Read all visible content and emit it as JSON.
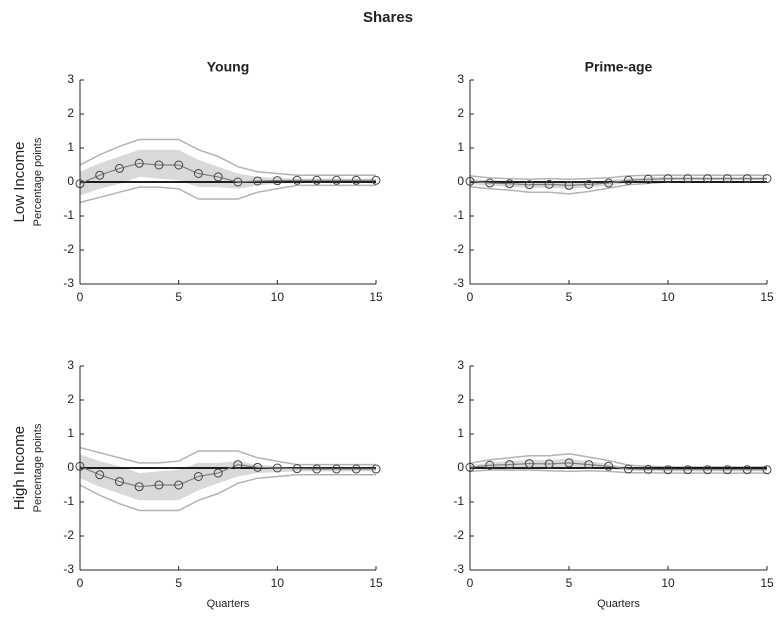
{
  "title": "Shares",
  "chart_data": [
    {
      "type": "line",
      "title": "Young",
      "row_label": "Low Income",
      "ylabel": "Percentage points",
      "x": [
        0,
        1,
        2,
        3,
        4,
        5,
        6,
        7,
        8,
        9,
        10,
        11,
        12,
        13,
        14,
        15
      ],
      "values": [
        -0.05,
        0.2,
        0.4,
        0.55,
        0.5,
        0.5,
        0.25,
        0.15,
        0.0,
        0.03,
        0.04,
        0.05,
        0.05,
        0.05,
        0.05,
        0.05
      ],
      "band_upper": [
        0.3,
        0.55,
        0.75,
        0.95,
        0.95,
        0.95,
        0.65,
        0.45,
        0.25,
        0.15,
        0.12,
        0.1,
        0.1,
        0.1,
        0.1,
        0.1
      ],
      "band_lower": [
        -0.4,
        -0.2,
        -0.05,
        0.15,
        0.1,
        0.05,
        -0.15,
        -0.15,
        -0.2,
        -0.1,
        -0.05,
        -0.02,
        -0.02,
        -0.02,
        -0.02,
        -0.02
      ],
      "outer_upper": [
        0.5,
        0.8,
        1.05,
        1.25,
        1.25,
        1.25,
        0.95,
        0.75,
        0.45,
        0.3,
        0.25,
        0.2,
        0.2,
        0.2,
        0.2,
        0.2
      ],
      "outer_lower": [
        -0.6,
        -0.45,
        -0.3,
        -0.15,
        -0.15,
        -0.2,
        -0.5,
        -0.5,
        -0.5,
        -0.3,
        -0.2,
        -0.1,
        -0.1,
        -0.1,
        -0.1,
        -0.1
      ],
      "line_color": "#808080",
      "band_color": "#d9d9d9",
      "outer_color": "#b3b3b3",
      "xlim": [
        0,
        15
      ],
      "xticks": [
        0,
        5,
        10,
        15
      ],
      "ylim": [
        -3,
        3
      ],
      "yticks": [
        -3,
        -2,
        -1,
        0,
        1,
        2,
        3
      ]
    },
    {
      "type": "line",
      "title": "Prime-age",
      "x": [
        0,
        1,
        2,
        3,
        4,
        5,
        6,
        7,
        8,
        9,
        10,
        11,
        12,
        13,
        14,
        15
      ],
      "values": [
        0.02,
        -0.03,
        -0.05,
        -0.08,
        -0.07,
        -0.1,
        -0.07,
        -0.03,
        0.05,
        0.08,
        0.1,
        0.1,
        0.1,
        0.1,
        0.1,
        0.1
      ],
      "band_upper": [
        0.1,
        0.05,
        0.04,
        0.02,
        0.03,
        0.0,
        0.02,
        0.05,
        0.12,
        0.14,
        0.15,
        0.15,
        0.15,
        0.15,
        0.15,
        0.15
      ],
      "band_lower": [
        -0.06,
        -0.11,
        -0.14,
        -0.18,
        -0.17,
        -0.2,
        -0.16,
        -0.11,
        -0.02,
        0.02,
        0.05,
        0.05,
        0.05,
        0.05,
        0.05,
        0.05
      ],
      "outer_upper": [
        0.18,
        0.12,
        0.1,
        0.08,
        0.1,
        0.08,
        0.1,
        0.12,
        0.18,
        0.2,
        0.2,
        0.2,
        0.2,
        0.2,
        0.2,
        0.2
      ],
      "outer_lower": [
        -0.14,
        -0.2,
        -0.24,
        -0.3,
        -0.3,
        -0.35,
        -0.28,
        -0.18,
        -0.08,
        -0.04,
        0,
        0,
        0,
        0,
        0,
        0
      ],
      "line_color": "#808080",
      "band_color": "#d9d9d9",
      "outer_color": "#b3b3b3",
      "xlim": [
        0,
        15
      ],
      "xticks": [
        0,
        5,
        10,
        15
      ],
      "ylim": [
        -3,
        3
      ],
      "yticks": [
        -3,
        -2,
        -1,
        0,
        1,
        2,
        3
      ]
    },
    {
      "type": "line",
      "row_label": "High Income",
      "ylabel": "Percentage points",
      "xlabel": "Quarters",
      "x": [
        0,
        1,
        2,
        3,
        4,
        5,
        6,
        7,
        8,
        9,
        10,
        11,
        12,
        13,
        14,
        15
      ],
      "values": [
        0.05,
        -0.2,
        -0.4,
        -0.55,
        -0.5,
        -0.5,
        -0.25,
        -0.15,
        0.1,
        0.02,
        0.0,
        -0.02,
        -0.03,
        -0.03,
        -0.03,
        -0.03
      ],
      "band_upper": [
        0.4,
        0.2,
        0.05,
        -0.15,
        -0.1,
        -0.05,
        0.15,
        0.15,
        0.2,
        0.1,
        0.05,
        0.02,
        0.02,
        0.02,
        0.02,
        0.02
      ],
      "band_lower": [
        -0.3,
        -0.55,
        -0.75,
        -0.95,
        -0.95,
        -0.95,
        -0.65,
        -0.45,
        -0.25,
        -0.15,
        -0.12,
        -0.1,
        -0.1,
        -0.1,
        -0.1,
        -0.1
      ],
      "outer_upper": [
        0.6,
        0.45,
        0.3,
        0.15,
        0.15,
        0.2,
        0.5,
        0.5,
        0.5,
        0.3,
        0.2,
        0.1,
        0.1,
        0.1,
        0.1,
        0.1
      ],
      "outer_lower": [
        -0.5,
        -0.8,
        -1.05,
        -1.25,
        -1.25,
        -1.25,
        -0.95,
        -0.75,
        -0.45,
        -0.3,
        -0.25,
        -0.2,
        -0.2,
        -0.2,
        -0.2,
        -0.2
      ],
      "line_color": "#808080",
      "band_color": "#d9d9d9",
      "outer_color": "#b3b3b3",
      "xlim": [
        0,
        15
      ],
      "xticks": [
        0,
        5,
        10,
        15
      ],
      "ylim": [
        -3,
        3
      ],
      "yticks": [
        -3,
        -2,
        -1,
        0,
        1,
        2,
        3
      ]
    },
    {
      "type": "line",
      "xlabel": "Quarters",
      "x": [
        0,
        1,
        2,
        3,
        4,
        5,
        6,
        7,
        8,
        9,
        10,
        11,
        12,
        13,
        14,
        15
      ],
      "values": [
        0.02,
        0.08,
        0.1,
        0.13,
        0.12,
        0.15,
        0.1,
        0.05,
        -0.03,
        -0.04,
        -0.05,
        -0.05,
        -0.05,
        -0.05,
        -0.05,
        -0.05
      ],
      "band_upper": [
        0.08,
        0.16,
        0.2,
        0.24,
        0.24,
        0.28,
        0.2,
        0.12,
        0.03,
        0.0,
        -0.01,
        -0.01,
        -0.01,
        -0.01,
        -0.01,
        -0.01
      ],
      "band_lower": [
        -0.04,
        0.0,
        0.02,
        0.03,
        0.02,
        0.03,
        0.01,
        -0.02,
        -0.08,
        -0.09,
        -0.1,
        -0.1,
        -0.1,
        -0.1,
        -0.1,
        -0.1
      ],
      "outer_upper": [
        0.14,
        0.24,
        0.3,
        0.36,
        0.36,
        0.42,
        0.32,
        0.22,
        0.08,
        0.05,
        0.03,
        0.03,
        0.03,
        0.03,
        0.03,
        0.03
      ],
      "outer_lower": [
        -0.1,
        -0.06,
        -0.06,
        -0.06,
        -0.08,
        -0.1,
        -0.08,
        -0.1,
        -0.14,
        -0.14,
        -0.15,
        -0.15,
        -0.15,
        -0.15,
        -0.15,
        -0.15
      ],
      "line_color": "#808080",
      "band_color": "#d9d9d9",
      "outer_color": "#b3b3b3",
      "xlim": [
        0,
        15
      ],
      "xticks": [
        0,
        5,
        10,
        15
      ],
      "ylim": [
        -3,
        3
      ],
      "yticks": [
        -3,
        -2,
        -1,
        0,
        1,
        2,
        3
      ]
    }
  ]
}
